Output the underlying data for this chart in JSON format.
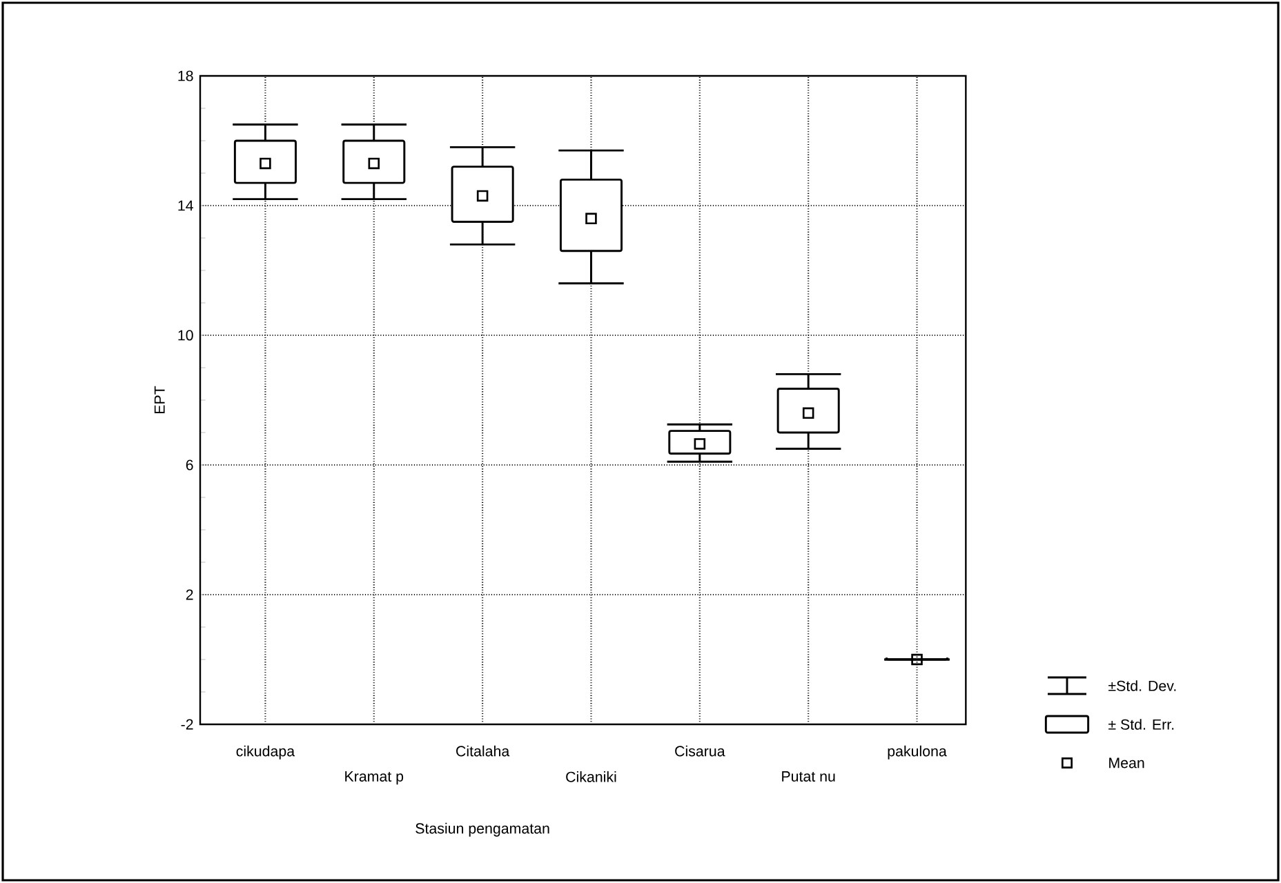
{
  "chart_data": {
    "type": "box",
    "xlabel": "Stasiun pengamatan",
    "ylabel": "EPT",
    "categories": [
      "cikudapa",
      "Kramat p",
      "Citalaha",
      "Cikaniki",
      "Cisarua",
      "Putat nu",
      "pakulona"
    ],
    "color": "#000000",
    "boxes": [
      {
        "low": 14.2,
        "q1": 14.7,
        "median": 15.3,
        "q3": 16.0,
        "high": 16.5
      },
      {
        "low": 14.2,
        "q1": 14.7,
        "median": 15.3,
        "q3": 16.0,
        "high": 16.5
      },
      {
        "low": 12.8,
        "q1": 13.5,
        "median": 14.3,
        "q3": 15.2,
        "high": 15.8
      },
      {
        "low": 11.6,
        "q1": 12.6,
        "median": 13.6,
        "q3": 14.8,
        "high": 15.7
      },
      {
        "low": 6.1,
        "q1": 6.35,
        "median": 6.65,
        "q3": 7.05,
        "high": 7.25
      },
      {
        "low": 6.5,
        "q1": 7.0,
        "median": 7.6,
        "q3": 8.35,
        "high": 8.8
      },
      {
        "low": 0,
        "q1": 0,
        "median": 0,
        "q3": 0,
        "high": 0,
        "mean": 0
      }
    ],
    "ylim": [
      -2,
      18
    ],
    "yticks": [
      -2,
      2,
      6,
      10,
      14,
      18
    ],
    "grid": true,
    "annotations": [
      "±Std. Dev.",
      "± Std. Err.",
      "Mean"
    ]
  }
}
